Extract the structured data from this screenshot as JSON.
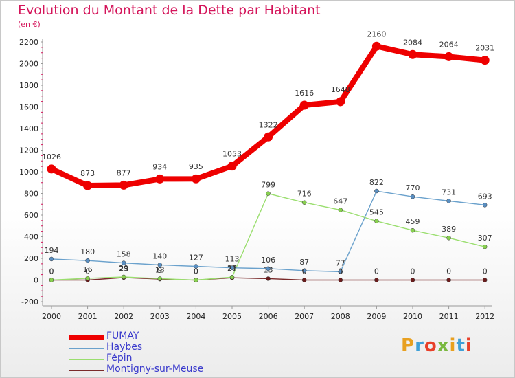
{
  "header": {
    "title": "Evolution du Montant de la Dette par Habitant",
    "unit": "(en €)"
  },
  "logo": {
    "text": "Proxiti",
    "colors": [
      "#e8a020",
      "#3fa0d8",
      "#e8402a",
      "#7ab840",
      "#e8a020",
      "#3fa0d8",
      "#e8402a"
    ]
  },
  "chart_data": {
    "type": "line",
    "title": "Evolution du Montant de la Dette par Habitant",
    "ylabel": "(en €)",
    "ylim": [
      -200,
      2200
    ],
    "yticks": [
      -200,
      0,
      200,
      400,
      600,
      800,
      1000,
      1200,
      1400,
      1600,
      1800,
      2000,
      2200
    ],
    "grid": false,
    "legend_position": "bottom-left",
    "x": [
      "2000",
      "2001",
      "2002",
      "2003",
      "2004",
      "2005",
      "2006",
      "2007",
      "2008",
      "2009",
      "2010",
      "2011",
      "2012"
    ],
    "series": [
      {
        "name": "FUMAY",
        "color": "#ee0000",
        "values": [
          1026,
          873,
          877,
          934,
          935,
          1053,
          1322,
          1616,
          1648,
          2160,
          2084,
          2064,
          2031
        ],
        "labels": [
          "1026",
          "873",
          "877",
          "934",
          "935",
          "1053",
          "1322",
          "1616",
          "1648",
          "2160",
          "2084",
          "2064",
          "2031"
        ]
      },
      {
        "name": "Haybes",
        "color": "#6aa1cc",
        "values": [
          194,
          180,
          158,
          140,
          127,
          113,
          106,
          87,
          77,
          822,
          770,
          731,
          693
        ],
        "labels": [
          "194",
          "180",
          "158",
          "140",
          "127",
          "113",
          "106",
          "87",
          "77",
          "822",
          "770",
          "731",
          "693"
        ]
      },
      {
        "name": "Fépin",
        "color": "#9ade6e",
        "values": [
          0,
          16,
          29,
          13,
          0,
          27,
          799,
          716,
          647,
          545,
          459,
          389,
          307
        ],
        "labels": [
          "0",
          "16",
          "29",
          "13",
          "0",
          "27",
          "799",
          "716",
          "647",
          "545",
          "459",
          "389",
          "307"
        ]
      },
      {
        "name": "Montigny-sur-Meuse",
        "color": "#7a2a2a",
        "values": [
          0,
          0,
          23,
          9,
          0,
          21,
          13,
          0,
          0,
          0,
          0,
          0,
          0
        ],
        "labels": [
          "0",
          "0",
          "23",
          "9",
          "0",
          "21",
          "13",
          "0",
          "0",
          "0",
          "0",
          "0",
          "0"
        ]
      }
    ]
  }
}
